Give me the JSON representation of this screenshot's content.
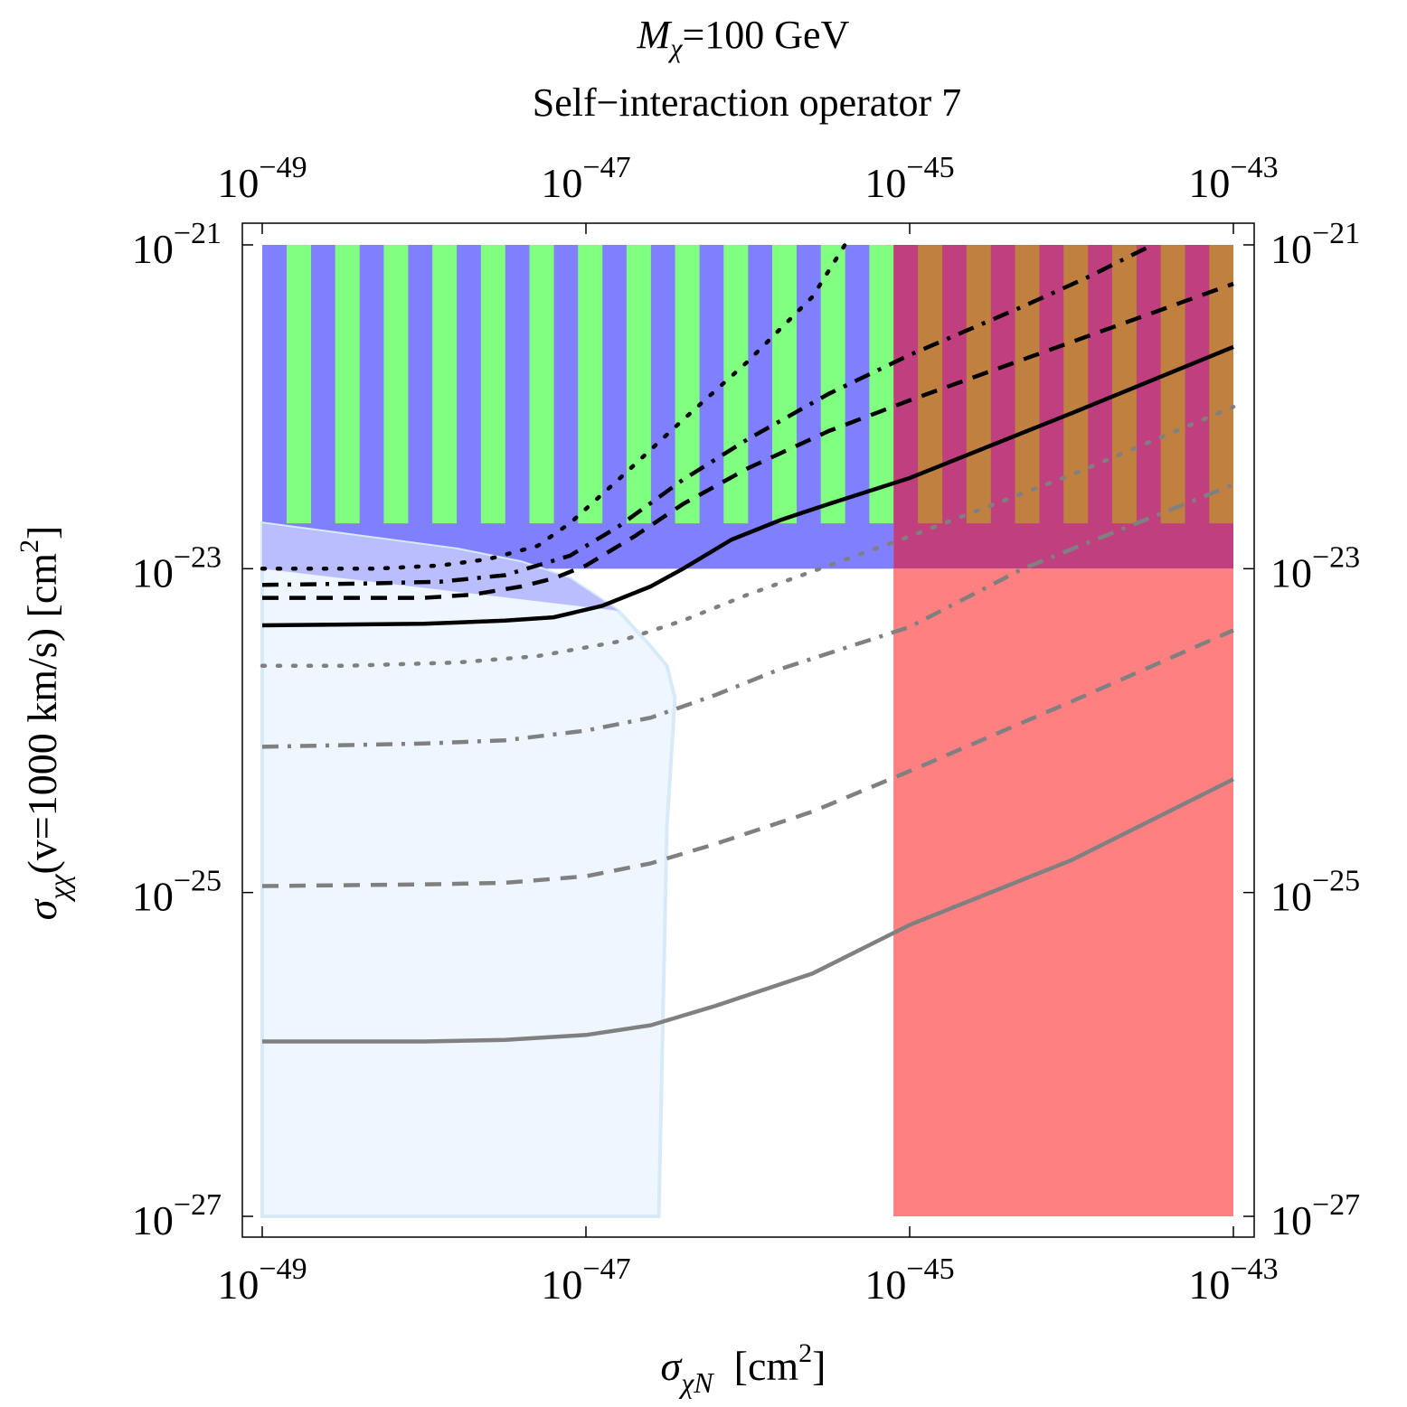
{
  "chart_data": {
    "type": "line",
    "title": "Mχ=100 GeV",
    "title_main": "M",
    "title_sub": "χ",
    "title_rest": "=100 GeV",
    "subtitle": "Self−interaction operator 7",
    "xlabel": "σχN  [cm2]",
    "xlabel_sigma": "σ",
    "xlabel_sub": "χN",
    "xlabel_unit": "[cm",
    "xlabel_unit_exp": "2",
    "xlabel_unit_close": "]",
    "ylabel": "σχχ(v=1000 km/s)  [cm2]",
    "ylabel_sigma": "σ",
    "ylabel_sub": "χχ",
    "ylabel_rest": "(v=1000 km/s)  [cm",
    "ylabel_unit_exp": "2",
    "ylabel_unit_close": "]",
    "x_scale": "log",
    "y_scale": "log",
    "xlim_log10": [
      -49,
      -43
    ],
    "ylim_log10": [
      -27,
      -21
    ],
    "x_ticks": [
      {
        "base": "10",
        "exp": "−49"
      },
      {
        "base": "10",
        "exp": "−47"
      },
      {
        "base": "10",
        "exp": "−45"
      },
      {
        "base": "10",
        "exp": "−43"
      }
    ],
    "y_ticks": [
      {
        "base": "10",
        "exp": "−21"
      },
      {
        "base": "10",
        "exp": "−23"
      },
      {
        "base": "10",
        "exp": "−25"
      },
      {
        "base": "10",
        "exp": "−27"
      }
    ],
    "colors": {
      "blue_region": "#8080ff",
      "green_stripes": "#80ff80",
      "purple_region": "#c0407f",
      "orange_stripes": "#c08040",
      "red_region": "#ff8080",
      "lightblue_region": "#eef6ff",
      "lightblue_edge": "#d8eaf8",
      "lightblue_top": "#b4b8ff",
      "black_curves": "#000000",
      "gray_curves": "#808080"
    },
    "regions": [
      {
        "name": "blue-excluded-region",
        "log10_x": [
          -49,
          -45.1
        ],
        "log10_y": [
          -23,
          -21
        ],
        "color": "blue_region",
        "stripes": "green_stripes",
        "stripe_y_bottom_log10": -22.72
      },
      {
        "name": "purple-excluded-region",
        "log10_x": [
          -45.1,
          -43
        ],
        "log10_y": [
          -23,
          -21
        ],
        "color": "purple_region",
        "stripes": "orange_stripes",
        "stripe_y_bottom_log10": -22.72
      },
      {
        "name": "red-excluded-region",
        "log10_x": [
          -45.1,
          -43
        ],
        "log10_y": [
          -27,
          -23
        ],
        "color": "red_region"
      },
      {
        "name": "lightblue-allowed-region",
        "color": "lightblue_region",
        "boundary_log10": [
          [
            -49,
            -22.72
          ],
          [
            -48.4,
            -22.8
          ],
          [
            -47.8,
            -22.88
          ],
          [
            -47.4,
            -22.96
          ],
          [
            -47.1,
            -23.06
          ],
          [
            -46.8,
            -23.26
          ],
          [
            -46.6,
            -23.48
          ],
          [
            -46.5,
            -23.6
          ],
          [
            -46.45,
            -23.8
          ],
          [
            -46.5,
            -24.6
          ],
          [
            -46.55,
            -27
          ],
          [
            -49,
            -27
          ]
        ]
      }
    ],
    "series": [
      {
        "name": "black-solid",
        "color": "black_curves",
        "dash": "solid",
        "log10_points": [
          [
            -49,
            -23.35
          ],
          [
            -48,
            -23.34
          ],
          [
            -47.5,
            -23.32
          ],
          [
            -47.2,
            -23.3
          ],
          [
            -46.9,
            -23.23
          ],
          [
            -46.6,
            -23.11
          ],
          [
            -46.4,
            -23.0
          ],
          [
            -46.1,
            -22.82
          ],
          [
            -45.8,
            -22.7
          ],
          [
            -45.5,
            -22.6
          ],
          [
            -45.0,
            -22.44
          ],
          [
            -44.0,
            -22.04
          ],
          [
            -43,
            -21.63
          ]
        ]
      },
      {
        "name": "black-dashed",
        "color": "black_curves",
        "dash": "dashed",
        "log10_points": [
          [
            -49,
            -23.18
          ],
          [
            -48,
            -23.18
          ],
          [
            -47.7,
            -23.16
          ],
          [
            -47.4,
            -23.11
          ],
          [
            -47.2,
            -23.06
          ],
          [
            -47.0,
            -22.98
          ],
          [
            -46.7,
            -22.8
          ],
          [
            -46.4,
            -22.6
          ],
          [
            -46.0,
            -22.38
          ],
          [
            -45.5,
            -22.15
          ],
          [
            -45.0,
            -21.96
          ],
          [
            -44.0,
            -21.6
          ],
          [
            -43,
            -21.24
          ]
        ]
      },
      {
        "name": "black-dashdot",
        "color": "black_curves",
        "dash": "dashdot",
        "log10_points": [
          [
            -49,
            -23.1
          ],
          [
            -48.3,
            -23.09
          ],
          [
            -47.9,
            -23.08
          ],
          [
            -47.5,
            -23.04
          ],
          [
            -47.1,
            -22.92
          ],
          [
            -46.8,
            -22.74
          ],
          [
            -46.4,
            -22.45
          ],
          [
            -46.0,
            -22.2
          ],
          [
            -45.5,
            -21.92
          ],
          [
            -45.0,
            -21.68
          ],
          [
            -44.3,
            -21.38
          ],
          [
            -43.9,
            -21.2
          ],
          [
            -43.5,
            -21.0
          ]
        ]
      },
      {
        "name": "black-dotted",
        "color": "black_curves",
        "dash": "dotted",
        "log10_points": [
          [
            -49,
            -23.0
          ],
          [
            -48.3,
            -23.0
          ],
          [
            -47.9,
            -22.98
          ],
          [
            -47.6,
            -22.94
          ],
          [
            -47.3,
            -22.86
          ],
          [
            -47.1,
            -22.72
          ],
          [
            -46.8,
            -22.45
          ],
          [
            -46.4,
            -22.08
          ],
          [
            -46.0,
            -21.72
          ],
          [
            -45.6,
            -21.32
          ],
          [
            -45.4,
            -21.0
          ]
        ]
      },
      {
        "name": "gray-solid",
        "color": "gray_curves",
        "dash": "solid",
        "log10_points": [
          [
            -49,
            -25.92
          ],
          [
            -48,
            -25.92
          ],
          [
            -47.5,
            -25.91
          ],
          [
            -47.0,
            -25.88
          ],
          [
            -46.6,
            -25.82
          ],
          [
            -46.2,
            -25.7
          ],
          [
            -45.6,
            -25.5
          ],
          [
            -45.0,
            -25.2
          ],
          [
            -44.0,
            -24.8
          ],
          [
            -43,
            -24.3
          ]
        ]
      },
      {
        "name": "gray-dashed",
        "color": "gray_curves",
        "dash": "dashed",
        "log10_points": [
          [
            -49,
            -24.96
          ],
          [
            -48,
            -24.95
          ],
          [
            -47.5,
            -24.94
          ],
          [
            -47.0,
            -24.9
          ],
          [
            -46.6,
            -24.82
          ],
          [
            -46.2,
            -24.7
          ],
          [
            -45.6,
            -24.5
          ],
          [
            -45.0,
            -24.25
          ],
          [
            -44.0,
            -23.82
          ],
          [
            -43,
            -23.38
          ]
        ]
      },
      {
        "name": "gray-dashdot",
        "color": "gray_curves",
        "dash": "dashdot",
        "log10_points": [
          [
            -49,
            -24.1
          ],
          [
            -48,
            -24.08
          ],
          [
            -47.5,
            -24.06
          ],
          [
            -47.0,
            -24.0
          ],
          [
            -46.6,
            -23.92
          ],
          [
            -46.2,
            -23.78
          ],
          [
            -45.8,
            -23.62
          ],
          [
            -45.0,
            -23.36
          ],
          [
            -44.3,
            -23.0
          ],
          [
            -43,
            -22.48
          ]
        ]
      },
      {
        "name": "gray-dotted",
        "color": "gray_curves",
        "dash": "dotted",
        "log10_points": [
          [
            -49,
            -23.6
          ],
          [
            -48.5,
            -23.6
          ],
          [
            -47.8,
            -23.58
          ],
          [
            -47.3,
            -23.54
          ],
          [
            -46.8,
            -23.45
          ],
          [
            -46.4,
            -23.32
          ],
          [
            -46.0,
            -23.16
          ],
          [
            -45.5,
            -22.98
          ],
          [
            -45.0,
            -22.8
          ],
          [
            -44.0,
            -22.42
          ],
          [
            -43,
            -22.0
          ]
        ]
      }
    ]
  }
}
